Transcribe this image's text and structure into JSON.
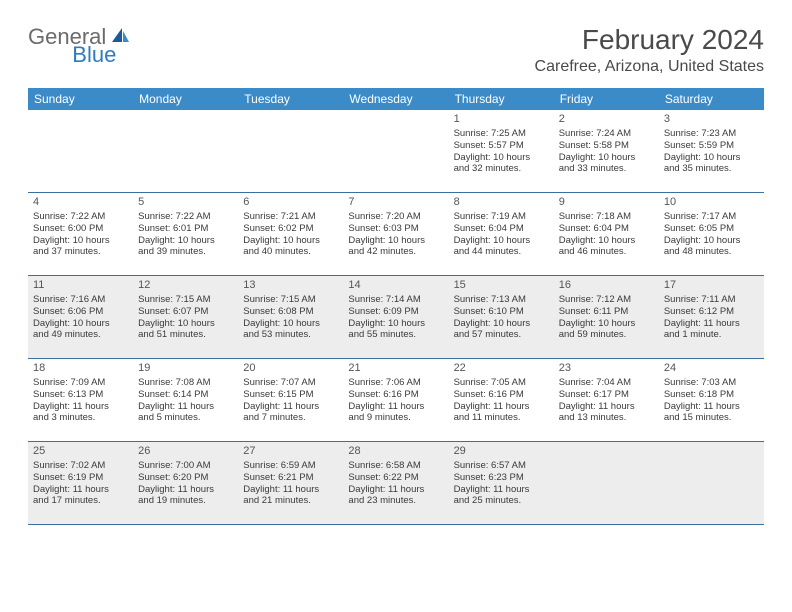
{
  "logo": {
    "general": "General",
    "blue": "Blue"
  },
  "title": "February 2024",
  "location": "Carefree, Arizona, United States",
  "colors": {
    "header_bg": "#3b8bc9",
    "header_text": "#ffffff",
    "border": "#3b6fa0",
    "shaded": "#ededed",
    "logo_gray": "#6b6b6b",
    "logo_blue": "#2f7bbf"
  },
  "day_names": [
    "Sunday",
    "Monday",
    "Tuesday",
    "Wednesday",
    "Thursday",
    "Friday",
    "Saturday"
  ],
  "weeks": [
    [
      {
        "num": "",
        "shaded": false
      },
      {
        "num": "",
        "shaded": false
      },
      {
        "num": "",
        "shaded": false
      },
      {
        "num": "",
        "shaded": false
      },
      {
        "num": "1",
        "shaded": false,
        "sunrise": "Sunrise: 7:25 AM",
        "sunset": "Sunset: 5:57 PM",
        "daylight1": "Daylight: 10 hours",
        "daylight2": "and 32 minutes."
      },
      {
        "num": "2",
        "shaded": false,
        "sunrise": "Sunrise: 7:24 AM",
        "sunset": "Sunset: 5:58 PM",
        "daylight1": "Daylight: 10 hours",
        "daylight2": "and 33 minutes."
      },
      {
        "num": "3",
        "shaded": false,
        "sunrise": "Sunrise: 7:23 AM",
        "sunset": "Sunset: 5:59 PM",
        "daylight1": "Daylight: 10 hours",
        "daylight2": "and 35 minutes."
      }
    ],
    [
      {
        "num": "4",
        "shaded": false,
        "sunrise": "Sunrise: 7:22 AM",
        "sunset": "Sunset: 6:00 PM",
        "daylight1": "Daylight: 10 hours",
        "daylight2": "and 37 minutes."
      },
      {
        "num": "5",
        "shaded": false,
        "sunrise": "Sunrise: 7:22 AM",
        "sunset": "Sunset: 6:01 PM",
        "daylight1": "Daylight: 10 hours",
        "daylight2": "and 39 minutes."
      },
      {
        "num": "6",
        "shaded": false,
        "sunrise": "Sunrise: 7:21 AM",
        "sunset": "Sunset: 6:02 PM",
        "daylight1": "Daylight: 10 hours",
        "daylight2": "and 40 minutes."
      },
      {
        "num": "7",
        "shaded": false,
        "sunrise": "Sunrise: 7:20 AM",
        "sunset": "Sunset: 6:03 PM",
        "daylight1": "Daylight: 10 hours",
        "daylight2": "and 42 minutes."
      },
      {
        "num": "8",
        "shaded": false,
        "sunrise": "Sunrise: 7:19 AM",
        "sunset": "Sunset: 6:04 PM",
        "daylight1": "Daylight: 10 hours",
        "daylight2": "and 44 minutes."
      },
      {
        "num": "9",
        "shaded": false,
        "sunrise": "Sunrise: 7:18 AM",
        "sunset": "Sunset: 6:04 PM",
        "daylight1": "Daylight: 10 hours",
        "daylight2": "and 46 minutes."
      },
      {
        "num": "10",
        "shaded": false,
        "sunrise": "Sunrise: 7:17 AM",
        "sunset": "Sunset: 6:05 PM",
        "daylight1": "Daylight: 10 hours",
        "daylight2": "and 48 minutes."
      }
    ],
    [
      {
        "num": "11",
        "shaded": true,
        "sunrise": "Sunrise: 7:16 AM",
        "sunset": "Sunset: 6:06 PM",
        "daylight1": "Daylight: 10 hours",
        "daylight2": "and 49 minutes."
      },
      {
        "num": "12",
        "shaded": true,
        "sunrise": "Sunrise: 7:15 AM",
        "sunset": "Sunset: 6:07 PM",
        "daylight1": "Daylight: 10 hours",
        "daylight2": "and 51 minutes."
      },
      {
        "num": "13",
        "shaded": true,
        "sunrise": "Sunrise: 7:15 AM",
        "sunset": "Sunset: 6:08 PM",
        "daylight1": "Daylight: 10 hours",
        "daylight2": "and 53 minutes."
      },
      {
        "num": "14",
        "shaded": true,
        "sunrise": "Sunrise: 7:14 AM",
        "sunset": "Sunset: 6:09 PM",
        "daylight1": "Daylight: 10 hours",
        "daylight2": "and 55 minutes."
      },
      {
        "num": "15",
        "shaded": true,
        "sunrise": "Sunrise: 7:13 AM",
        "sunset": "Sunset: 6:10 PM",
        "daylight1": "Daylight: 10 hours",
        "daylight2": "and 57 minutes."
      },
      {
        "num": "16",
        "shaded": true,
        "sunrise": "Sunrise: 7:12 AM",
        "sunset": "Sunset: 6:11 PM",
        "daylight1": "Daylight: 10 hours",
        "daylight2": "and 59 minutes."
      },
      {
        "num": "17",
        "shaded": true,
        "sunrise": "Sunrise: 7:11 AM",
        "sunset": "Sunset: 6:12 PM",
        "daylight1": "Daylight: 11 hours",
        "daylight2": "and 1 minute."
      }
    ],
    [
      {
        "num": "18",
        "shaded": false,
        "sunrise": "Sunrise: 7:09 AM",
        "sunset": "Sunset: 6:13 PM",
        "daylight1": "Daylight: 11 hours",
        "daylight2": "and 3 minutes."
      },
      {
        "num": "19",
        "shaded": false,
        "sunrise": "Sunrise: 7:08 AM",
        "sunset": "Sunset: 6:14 PM",
        "daylight1": "Daylight: 11 hours",
        "daylight2": "and 5 minutes."
      },
      {
        "num": "20",
        "shaded": false,
        "sunrise": "Sunrise: 7:07 AM",
        "sunset": "Sunset: 6:15 PM",
        "daylight1": "Daylight: 11 hours",
        "daylight2": "and 7 minutes."
      },
      {
        "num": "21",
        "shaded": false,
        "sunrise": "Sunrise: 7:06 AM",
        "sunset": "Sunset: 6:16 PM",
        "daylight1": "Daylight: 11 hours",
        "daylight2": "and 9 minutes."
      },
      {
        "num": "22",
        "shaded": false,
        "sunrise": "Sunrise: 7:05 AM",
        "sunset": "Sunset: 6:16 PM",
        "daylight1": "Daylight: 11 hours",
        "daylight2": "and 11 minutes."
      },
      {
        "num": "23",
        "shaded": false,
        "sunrise": "Sunrise: 7:04 AM",
        "sunset": "Sunset: 6:17 PM",
        "daylight1": "Daylight: 11 hours",
        "daylight2": "and 13 minutes."
      },
      {
        "num": "24",
        "shaded": false,
        "sunrise": "Sunrise: 7:03 AM",
        "sunset": "Sunset: 6:18 PM",
        "daylight1": "Daylight: 11 hours",
        "daylight2": "and 15 minutes."
      }
    ],
    [
      {
        "num": "25",
        "shaded": true,
        "sunrise": "Sunrise: 7:02 AM",
        "sunset": "Sunset: 6:19 PM",
        "daylight1": "Daylight: 11 hours",
        "daylight2": "and 17 minutes."
      },
      {
        "num": "26",
        "shaded": true,
        "sunrise": "Sunrise: 7:00 AM",
        "sunset": "Sunset: 6:20 PM",
        "daylight1": "Daylight: 11 hours",
        "daylight2": "and 19 minutes."
      },
      {
        "num": "27",
        "shaded": true,
        "sunrise": "Sunrise: 6:59 AM",
        "sunset": "Sunset: 6:21 PM",
        "daylight1": "Daylight: 11 hours",
        "daylight2": "and 21 minutes."
      },
      {
        "num": "28",
        "shaded": true,
        "sunrise": "Sunrise: 6:58 AM",
        "sunset": "Sunset: 6:22 PM",
        "daylight1": "Daylight: 11 hours",
        "daylight2": "and 23 minutes."
      },
      {
        "num": "29",
        "shaded": true,
        "sunrise": "Sunrise: 6:57 AM",
        "sunset": "Sunset: 6:23 PM",
        "daylight1": "Daylight: 11 hours",
        "daylight2": "and 25 minutes."
      },
      {
        "num": "",
        "shaded": true
      },
      {
        "num": "",
        "shaded": true
      }
    ]
  ]
}
